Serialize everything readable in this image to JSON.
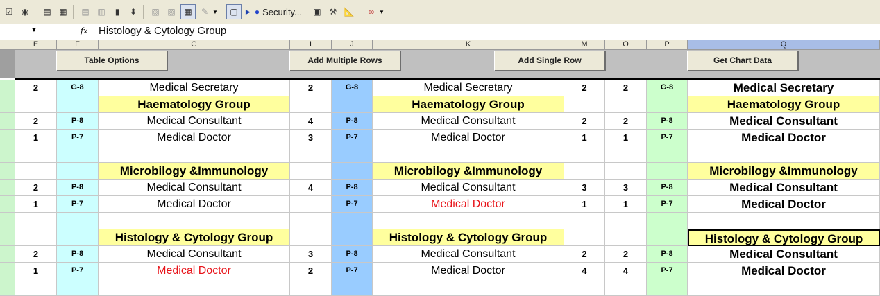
{
  "toolbar": {
    "security_label": "Security...",
    "checkbox_glyph": "☑",
    "radio_glyph": "◉",
    "icons": [
      "checkbox-icon",
      "radio-icon",
      "listbox-icon",
      "combobox-icon",
      "combo-list-icon",
      "combo-drop-icon",
      "scrollbar-icon",
      "spinner-icon",
      "properties-icon",
      "code-icon",
      "grid-toggle-icon",
      "control-toolbox-icon",
      "frame-icon",
      "run-icon",
      "record-icon",
      "visual-basic-icon",
      "tools-icon",
      "design-mode-icon",
      "hyperlink-icon"
    ]
  },
  "formula_bar": {
    "fx_label": "fx",
    "content": "Histology & Cytology Group"
  },
  "columns": [
    "E",
    "F",
    "G",
    "I",
    "J",
    "K",
    "M",
    "O",
    "P",
    "Q"
  ],
  "selected_column": "Q",
  "buttons": {
    "table_options": "Table Options",
    "add_multiple_rows": "Add Multiple Rows",
    "add_single_row": "Add Single Row",
    "get_chart_data": "Get Chart Data"
  },
  "rows": [
    {
      "type": "data",
      "e": "2",
      "f": "G-8",
      "g": "Medical Secretary",
      "i": "2",
      "j": "G-8",
      "k": "Medical Secretary",
      "m": "2",
      "o": "2",
      "p": "G-8",
      "q": "Medical Secretary"
    },
    {
      "type": "group",
      "name": "Haematology Group"
    },
    {
      "type": "data",
      "e": "2",
      "f": "P-8",
      "g": "Medical Consultant",
      "i": "4",
      "j": "P-8",
      "k": "Medical Consultant",
      "m": "2",
      "o": "2",
      "p": "P-8",
      "q": "Medical Consultant"
    },
    {
      "type": "data",
      "e": "1",
      "f": "P-7",
      "g": "Medical Doctor",
      "i": "3",
      "j": "P-7",
      "k": "Medical Doctor",
      "m": "1",
      "o": "1",
      "p": "P-7",
      "q": "Medical Doctor"
    },
    {
      "type": "blank"
    },
    {
      "type": "group",
      "name": "Microbilogy &Immunology"
    },
    {
      "type": "data",
      "e": "2",
      "f": "P-8",
      "g": "Medical Consultant",
      "i": "4",
      "j": "P-8",
      "k": "Medical Consultant",
      "m": "3",
      "o": "3",
      "p": "P-8",
      "q": "Medical Consultant"
    },
    {
      "type": "data",
      "e": "1",
      "f": "P-7",
      "g": "Medical Doctor",
      "i": "",
      "j": "P-7",
      "k": "Medical Doctor",
      "k_red": true,
      "m": "1",
      "o": "1",
      "p": "P-7",
      "q": "Medical Doctor"
    },
    {
      "type": "blank"
    },
    {
      "type": "group",
      "name": "Histology & Cytology Group",
      "q_selected": true
    },
    {
      "type": "data",
      "e": "2",
      "f": "P-8",
      "g": "Medical Consultant",
      "i": "3",
      "j": "P-8",
      "k": "Medical Consultant",
      "m": "2",
      "o": "2",
      "p": "P-8",
      "q": "Medical Consultant"
    },
    {
      "type": "data",
      "e": "1",
      "f": "P-7",
      "g": "Medical Doctor",
      "g_red": true,
      "i": "2",
      "j": "P-7",
      "k": "Medical Doctor",
      "m": "4",
      "o": "4",
      "p": "P-7",
      "q": "Medical Doctor"
    },
    {
      "type": "blank"
    }
  ],
  "colors": {
    "group_fill": "#ffff9e",
    "grade_left_fill": "#ccffff",
    "grade_mid_fill": "#99ccff",
    "grade_right_fill": "#ccffcc",
    "alert_text": "#e8141a",
    "row_header_fill": "#ccf5cc"
  }
}
